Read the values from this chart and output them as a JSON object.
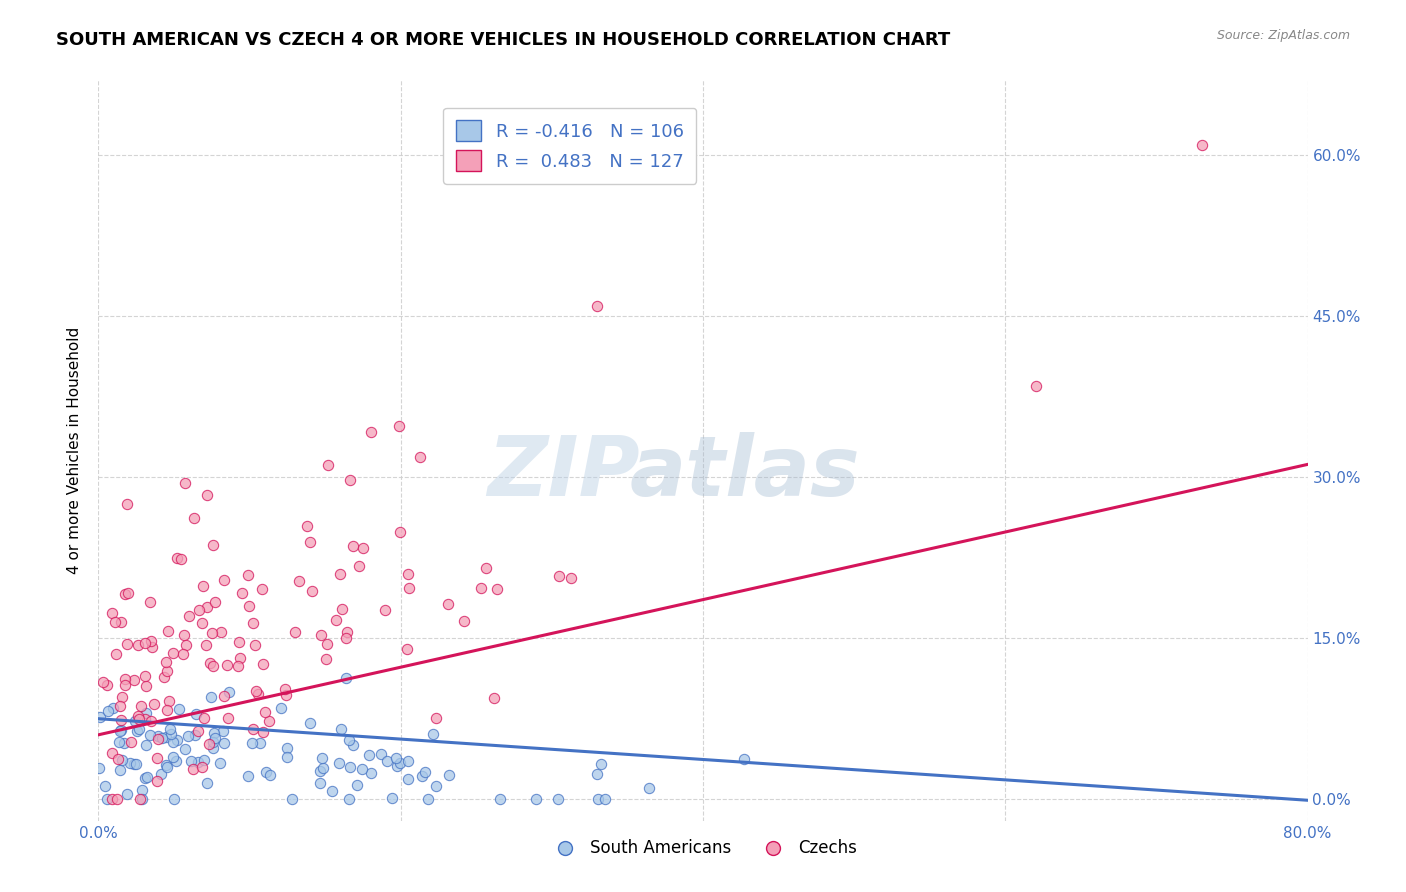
{
  "title": "SOUTH AMERICAN VS CZECH 4 OR MORE VEHICLES IN HOUSEHOLD CORRELATION CHART",
  "source": "Source: ZipAtlas.com",
  "ylabel": "4 or more Vehicles in Household",
  "xlabel": "",
  "xlim": [
    0.0,
    0.8
  ],
  "ylim": [
    -0.02,
    0.67
  ],
  "yticks": [
    0.0,
    0.15,
    0.3,
    0.45,
    0.6
  ],
  "ytick_labels": [
    "0.0%",
    "15.0%",
    "30.0%",
    "45.0%",
    "60.0%"
  ],
  "xticks": [
    0.0,
    0.2,
    0.4,
    0.6,
    0.8
  ],
  "xtick_labels": [
    "0.0%",
    "",
    "",
    "",
    "80.0%"
  ],
  "blue_R": -0.416,
  "blue_N": 106,
  "pink_R": 0.483,
  "pink_N": 127,
  "blue_color": "#a8c8e8",
  "pink_color": "#f4a0b8",
  "blue_line_color": "#4472c4",
  "pink_line_color": "#d4145a",
  "blue_fill_color": "#6baed6",
  "pink_fill_color": "#fa9fb5",
  "blue_label": "South Americans",
  "pink_label": "Czechs",
  "title_fontsize": 13,
  "axis_color": "#4472c4",
  "background_color": "#ffffff",
  "grid_color": "#d0d0d0",
  "seed": 12345,
  "blue_line_intercept": 0.075,
  "blue_line_slope": -0.095,
  "pink_line_intercept": 0.065,
  "pink_line_slope": 0.295
}
